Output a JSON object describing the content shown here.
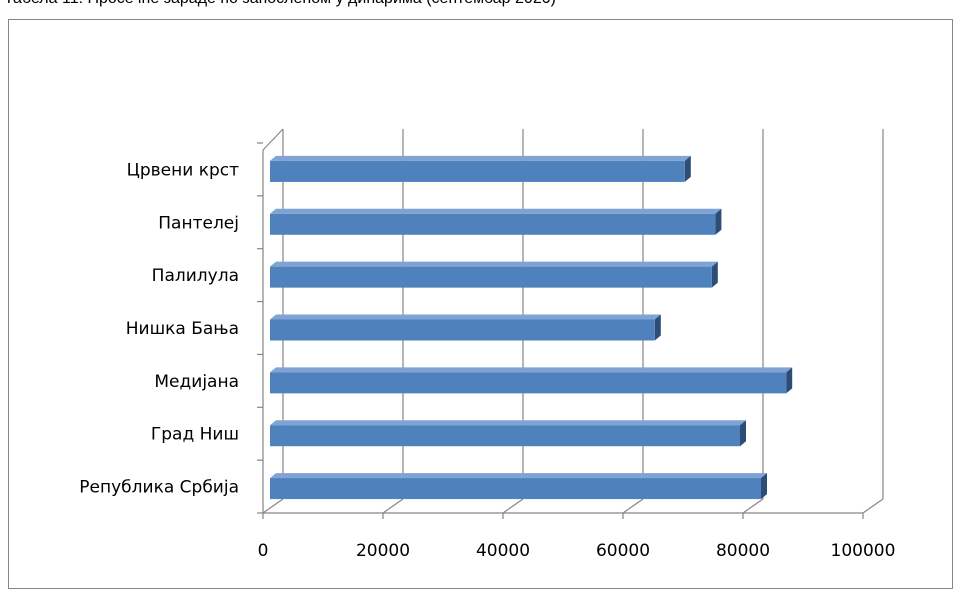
{
  "caption": "Табела 11: Просечне зараде по запосленом у динарима (септембар 2020)",
  "colors": {
    "bar_front": "#4F81BD",
    "bar_top": "#7FA3D4",
    "bar_side": "#2C4D75",
    "grid": "#868686",
    "frame": "#868686"
  },
  "chart_data": {
    "type": "bar",
    "orientation": "horizontal",
    "categories": [
      "Република Србија",
      "Град Ниш",
      "Медијана",
      "Нишка Бања",
      "Палилула",
      "Пантелеј",
      "Црвени крст"
    ],
    "values": [
      83000,
      79500,
      87200,
      65300,
      74800,
      75400,
      70300
    ],
    "xlim": [
      0,
      100000
    ],
    "xticks": [
      "0",
      "20000",
      "40000",
      "60000",
      "80000",
      "100000"
    ],
    "xtick_values": [
      0,
      20000,
      40000,
      60000,
      80000,
      100000
    ],
    "grid": true,
    "legend": "none",
    "title": "",
    "xlabel": "",
    "ylabel": ""
  }
}
